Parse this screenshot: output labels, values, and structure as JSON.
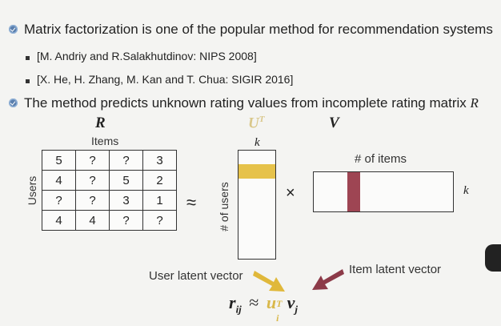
{
  "bullets": [
    {
      "text": "Matrix factorization is one of the popular method for recommendation systems"
    },
    {
      "text": "The method predicts unknown rating values from incomplete rating matrix "
    }
  ],
  "references": [
    "[M. Andriy and R.Salakhutdinov: NIPS 2008]",
    "[X. He, H. Zhang, M. Kan and T. Chua: SIGIR 2016]"
  ],
  "bullet2_matrix_symbol": "R",
  "diagram": {
    "R_label": "R",
    "U_label": "U",
    "U_sup": "T",
    "V_label": "V",
    "items_label": "Items",
    "users_label": "Users",
    "k_top": "k",
    "k_right": "k",
    "num_users_label": "# of users",
    "num_items_label": "# of items",
    "approx_symbol": "≈",
    "times_symbol": "×",
    "matrix": [
      [
        "5",
        "?",
        "?",
        "3"
      ],
      [
        "4",
        "?",
        "5",
        "2"
      ],
      [
        "?",
        "?",
        "3",
        "1"
      ],
      [
        "4",
        "4",
        "?",
        "?"
      ]
    ],
    "user_latent_label": "User latent vector",
    "item_latent_label": "Item latent vector",
    "formula": {
      "lhs": "r",
      "lhs_sub": "ij",
      "approx": "≈",
      "u": "u",
      "u_sup": "T",
      "u_sub": "i",
      "v": "v",
      "v_sub": "j"
    },
    "colors": {
      "user_highlight": "#e6c24a",
      "item_highlight": "#9e4553",
      "arrow_user": "#e0b83a",
      "arrow_item": "#8c3a48",
      "U_label_color": "#d9c78a",
      "bullet_icon": "#5a7fae"
    }
  }
}
